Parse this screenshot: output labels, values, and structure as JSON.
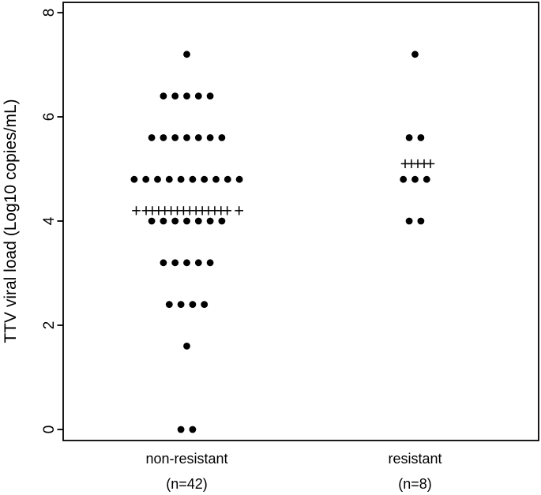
{
  "figure": {
    "background": "#ffffff",
    "foreground": "#000000"
  },
  "chart_data": {
    "type": "scatter",
    "subtype": "dot-plot",
    "title": "",
    "xlabel": "",
    "ylabel": "TTV viral load (Log10 copies/mL)",
    "ylim": [
      0,
      8
    ],
    "yticks": [
      0,
      2,
      4,
      6,
      8
    ],
    "grid": false,
    "legend": "none",
    "marker_color": "#000000",
    "dot_marker": "filled-circle",
    "mean_marker": "plus",
    "groups": [
      {
        "label": "non-resistant",
        "n_label": "(n=42)",
        "n": 42,
        "dot_rows": [
          {
            "value": 7.2,
            "count": 1
          },
          {
            "value": 6.4,
            "count": 5
          },
          {
            "value": 5.6,
            "count": 7
          },
          {
            "value": 4.8,
            "count": 10
          },
          {
            "value": 4.0,
            "count": 7
          },
          {
            "value": 3.2,
            "count": 5
          },
          {
            "value": 2.4,
            "count": 4
          },
          {
            "value": 1.6,
            "count": 1
          },
          {
            "value": 0,
            "count": 2
          }
        ],
        "plus_row": {
          "value": 4.2,
          "count": 16,
          "offsets": [
            -64,
            -51.5,
            -43.6,
            -35.7,
            -27.8,
            -19.9,
            -12,
            -4.1,
            3.8,
            11.7,
            19.6,
            27.5,
            35.4,
            43.3,
            51.2,
            66.2
          ]
        }
      },
      {
        "label": "resistant",
        "n_label": "(n=8)",
        "n": 8,
        "dot_rows": [
          {
            "value": 7.2,
            "count": 1
          },
          {
            "value": 5.6,
            "count": 2
          },
          {
            "value": 4.8,
            "count": 3
          },
          {
            "value": 4.0,
            "count": 2
          }
        ],
        "plus_row": {
          "value": 5.1,
          "count": 5,
          "offsets": [
            -12.5,
            -4.5,
            3.5,
            11.5,
            19.5
          ]
        }
      }
    ]
  }
}
